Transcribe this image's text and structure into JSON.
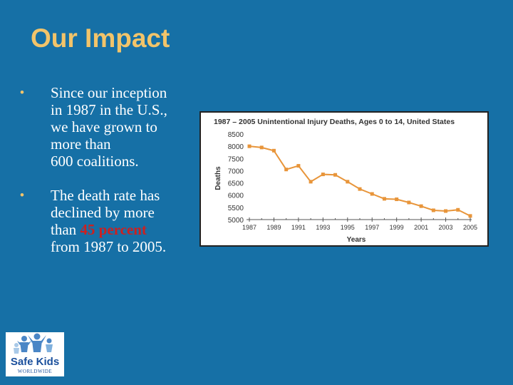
{
  "slide": {
    "title": "Our Impact",
    "bullets": [
      {
        "lines": [
          "Since our inception",
          "in 1987 in the U.S.,",
          "we have grown to",
          "more than",
          "600 coalitions."
        ]
      },
      {
        "lines_before": [
          "The death rate has",
          "declined by more"
        ],
        "highlight_prefix": "than ",
        "highlight": "45 percent",
        "lines_after": [
          "from 1987 to 2005."
        ]
      }
    ],
    "bullet_char": "•"
  },
  "logo": {
    "text": "Safe Kids",
    "subtext": "WORLDWIDE"
  },
  "colors": {
    "background": "#1670a6",
    "title": "#f2c46a",
    "highlight": "#cc2020",
    "series": "#e8953a",
    "chart_axis": "#555555"
  },
  "chart_data": {
    "type": "line",
    "title": "1987 – 2005 Unintentional Injury Deaths, Ages 0 to 14, United States",
    "xlabel": "Years",
    "ylabel": "Deaths",
    "x": [
      1987,
      1988,
      1989,
      1990,
      1991,
      1992,
      1993,
      1994,
      1995,
      1996,
      1997,
      1998,
      1999,
      2000,
      2001,
      2002,
      2003,
      2004,
      2005
    ],
    "series": [
      {
        "values": [
          8000,
          7950,
          7820,
          7050,
          7200,
          6550,
          6850,
          6830,
          6550,
          6250,
          6050,
          5850,
          5830,
          5700,
          5550,
          5380,
          5350,
          5400,
          5150
        ]
      }
    ],
    "xticks": [
      "1987",
      "1989",
      "1991",
      "1993",
      "1995",
      "1997",
      "1999",
      "2001",
      "2003",
      "2005"
    ],
    "yticks": [
      "8500",
      "8000",
      "7500",
      "7000",
      "6500",
      "6000",
      "5500",
      "5000"
    ],
    "ylim": [
      5000,
      8500
    ],
    "xlim": [
      1987,
      2005
    ],
    "grid": false
  }
}
